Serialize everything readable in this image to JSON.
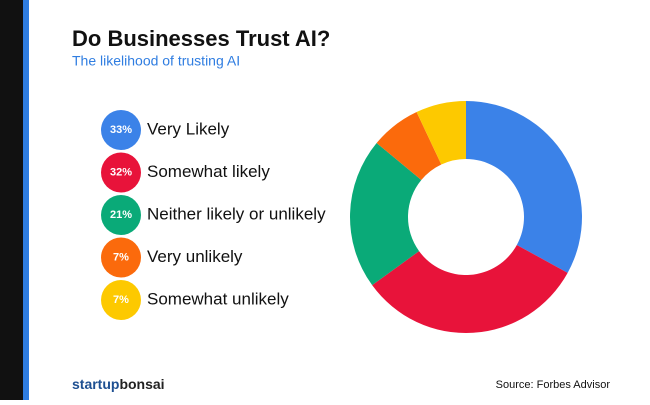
{
  "chart_data": {
    "type": "donut",
    "title": "Do Businesses Trust AI?",
    "subtitle": "The likelihood of trusting AI",
    "categories": [
      "Very Likely",
      "Somewhat likely",
      "Neither likely or unlikely",
      "Very unlikely",
      "Somewhat unlikely"
    ],
    "values": [
      33,
      32,
      21,
      7,
      7
    ],
    "value_labels": [
      "33%",
      "32%",
      "21%",
      "7%",
      "7%"
    ],
    "colors": [
      "#3b82e8",
      "#e8133a",
      "#0aaa78",
      "#fb6a0c",
      "#fdc900"
    ],
    "source": "Source: Forbes Advisor",
    "logo": [
      "startup",
      "bonsai"
    ]
  }
}
